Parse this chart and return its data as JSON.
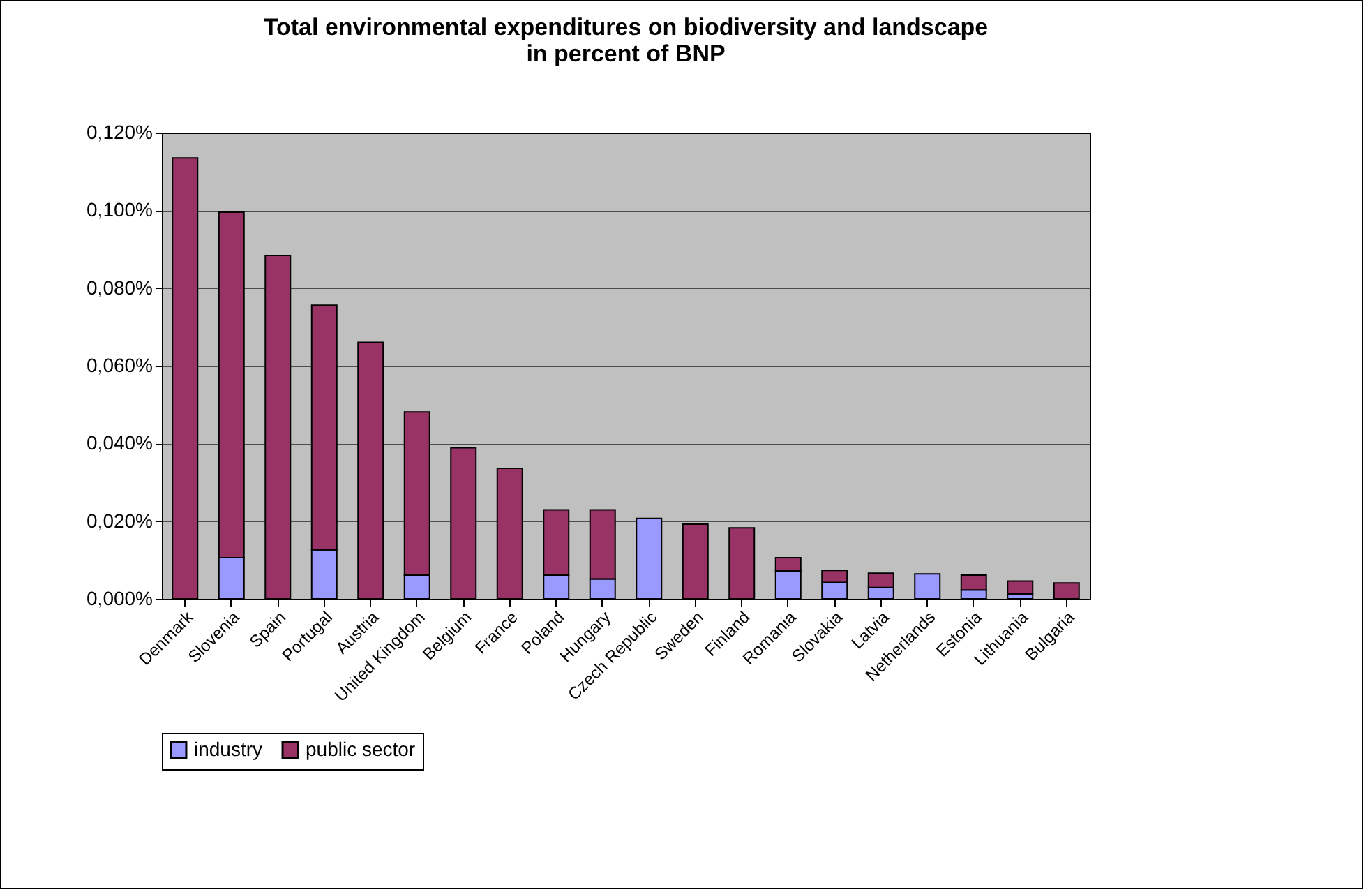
{
  "chart_data": {
    "type": "bar",
    "title": "Total environmental expenditures on biodiversity and landscape\nin percent of BNP",
    "stacked": true,
    "categories": [
      "Denmark",
      "Slovenia",
      "Spain",
      "Portugal",
      "Austria",
      "United Kingdom",
      "Belgium",
      "France",
      "Poland",
      "Hungary",
      "Czech Republic",
      "Sweden",
      "Finland",
      "Romania",
      "Slovakia",
      "Latvia",
      "Netherlands",
      "Estonia",
      "Lithuania",
      "Bulgaria"
    ],
    "series": [
      {
        "name": "industry",
        "color": "#9999ff",
        "values": [
          null,
          0.0106,
          null,
          0.0126,
          null,
          0.0061,
          null,
          null,
          0.0061,
          0.0051,
          0.0207,
          null,
          null,
          0.0072,
          0.0042,
          0.0029,
          0.0064,
          0.0023,
          0.0013,
          null
        ]
      },
      {
        "name": "public sector",
        "color": "#993366",
        "values": [
          0.1135,
          0.0889,
          0.0884,
          0.063,
          0.066,
          0.042,
          0.0389,
          0.0336,
          0.0168,
          0.0178,
          null,
          0.0192,
          0.0183,
          0.0034,
          0.0031,
          0.0037,
          null,
          0.0038,
          0.0033,
          0.0041
        ]
      }
    ],
    "ylim": [
      0,
      0.12
    ],
    "yticks": [
      {
        "value": 0,
        "label": "0,000%"
      },
      {
        "value": 0.02,
        "label": "0,020%"
      },
      {
        "value": 0.04,
        "label": "0,040%"
      },
      {
        "value": 0.06,
        "label": "0,060%"
      },
      {
        "value": 0.08,
        "label": "0,080%"
      },
      {
        "value": 0.1,
        "label": "0,100%"
      },
      {
        "value": 0.12,
        "label": "0,120%"
      }
    ],
    "grid": "y",
    "legend": "bottom"
  }
}
